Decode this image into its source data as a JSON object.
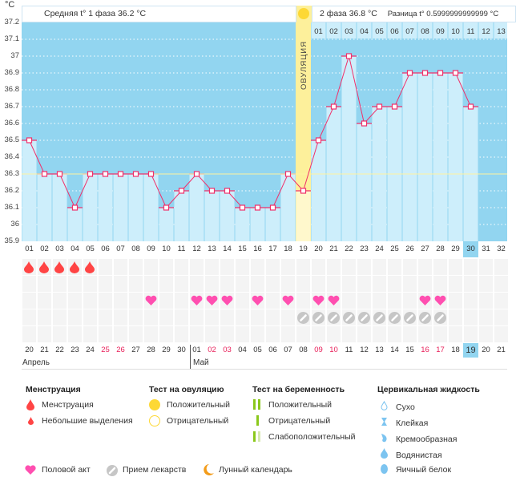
{
  "unit_label": "°C",
  "header": {
    "phase1": "Средняя t° 1 фаза 36.2 °C",
    "phase2": "2 фаза 36.8 °C",
    "difference": "Разница t° 0.5999999999999 °C"
  },
  "ovulation_label": "ОВУЛЯЦИЯ",
  "colors": {
    "bg_chart": "#92d5f0",
    "bar": "#cdeefb",
    "line": "#f0306a",
    "ovulation": "#fdf09b",
    "today": "#92d5f0",
    "weekend": "#e8205a"
  },
  "chart_data": {
    "type": "line",
    "ylim": [
      35.9,
      37.2
    ],
    "y_ticks": [
      "37.2",
      "37.1",
      "37",
      "36.9",
      "36.8",
      "36.7",
      "36.6",
      "36.5",
      "36.4",
      "36.3",
      "36.2",
      "36.1",
      "36",
      "35.9"
    ],
    "cycle_days": [
      "01",
      "02",
      "03",
      "04",
      "05",
      "06",
      "07",
      "08",
      "09",
      "10",
      "11",
      "12",
      "13",
      "14",
      "15",
      "16",
      "17",
      "18",
      "19",
      "20",
      "21",
      "22",
      "23",
      "24",
      "25",
      "26",
      "27",
      "28",
      "29",
      "30",
      "31",
      "32"
    ],
    "temperatures": [
      36.5,
      36.3,
      36.3,
      36.1,
      36.3,
      36.3,
      36.3,
      36.3,
      36.3,
      36.1,
      36.2,
      36.3,
      36.2,
      36.2,
      36.1,
      36.1,
      36.1,
      36.3,
      36.2,
      36.5,
      36.7,
      37.0,
      36.6,
      36.7,
      36.7,
      36.9,
      36.9,
      36.9,
      36.9,
      36.7
    ],
    "coverline": 36.3,
    "ovulation_day": 19,
    "phase2_days": [
      "01",
      "02",
      "03",
      "04",
      "05",
      "06",
      "07",
      "08",
      "09",
      "10",
      "11",
      "12",
      "13"
    ],
    "current_day": 30
  },
  "calendar": {
    "dates": [
      "20",
      "21",
      "22",
      "23",
      "24",
      "25",
      "26",
      "27",
      "28",
      "29",
      "30",
      "01",
      "02",
      "03",
      "04",
      "05",
      "06",
      "07",
      "08",
      "09",
      "10",
      "11",
      "12",
      "13",
      "14",
      "15",
      "16",
      "17",
      "18",
      "19",
      "20",
      "21"
    ],
    "weekend_idx": [
      5,
      6,
      12,
      13,
      19,
      20,
      26,
      27
    ],
    "today_idx": 29,
    "months": [
      "Апрель",
      "Май"
    ],
    "menstruation_days": [
      1,
      2,
      3,
      4,
      5
    ],
    "intercourse_days": [
      9,
      12,
      13,
      14,
      16,
      18,
      20,
      21,
      27,
      28
    ],
    "medication_days": [
      19,
      20,
      21,
      22,
      23,
      24,
      25,
      26,
      27,
      28
    ]
  },
  "legend": {
    "menstruation": {
      "title": "Менструация",
      "items": [
        "Менструация",
        "Небольшие выделения"
      ]
    },
    "ovulation_test": {
      "title": "Тест на овуляцию",
      "items": [
        "Положительный",
        "Отрицательный"
      ]
    },
    "pregnancy_test": {
      "title": "Тест на беременность",
      "items": [
        "Положительный",
        "Отрицательный",
        "Слабоположительный"
      ]
    },
    "cervical": {
      "title": "Цервикальная жидкость",
      "items": [
        "Сухо",
        "Клейкая",
        "Кремообразная",
        "Водянистая",
        "Яичный белок"
      ]
    },
    "bottom": [
      "Половой акт",
      "Прием лекарств",
      "Лунный календарь"
    ]
  }
}
